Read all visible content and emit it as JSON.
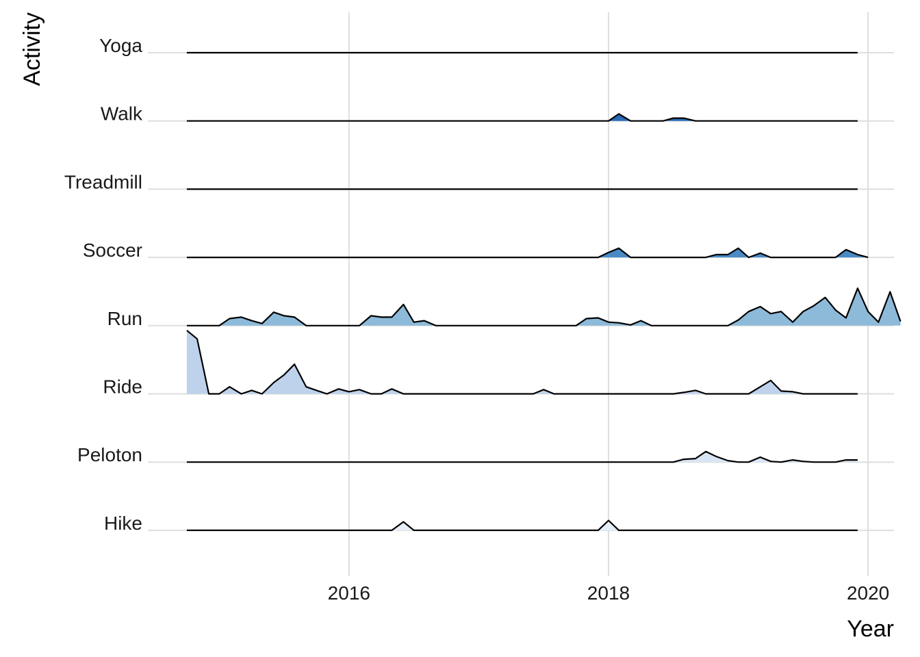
{
  "chart_data": {
    "type": "ridgeline",
    "xlabel": "Year",
    "ylabel": "Activity",
    "x_ticks": [
      2016,
      2018,
      2020
    ],
    "xlim": [
      2014.45,
      2020.2
    ],
    "grid": true,
    "legend": "none",
    "colors": {
      "Walk": "#2b6cb5",
      "Soccer": "#4a8bc5",
      "Run": "#8dbad9",
      "Ride": "#bed2ec",
      "Peloton": "#d8e5f4",
      "Hike": "#e6eef8",
      "Treadmill": "#eeeeee",
      "Yoga": "#eeeeee",
      "line": "#000000",
      "grid": "#dedede"
    },
    "series": [
      {
        "name": "Hike",
        "points": [
          [
            2014.75,
            0
          ],
          [
            2016.33,
            0
          ],
          [
            2016.42,
            0.12
          ],
          [
            2016.5,
            0
          ],
          [
            2017.92,
            0
          ],
          [
            2018.0,
            0.14
          ],
          [
            2018.08,
            0
          ],
          [
            2019.92,
            0
          ]
        ]
      },
      {
        "name": "Peloton",
        "points": [
          [
            2014.75,
            0
          ],
          [
            2018.5,
            0
          ],
          [
            2018.58,
            0.04
          ],
          [
            2018.67,
            0.05
          ],
          [
            2018.75,
            0.15
          ],
          [
            2018.83,
            0.08
          ],
          [
            2018.92,
            0.02
          ],
          [
            2019.0,
            0
          ],
          [
            2019.08,
            0
          ],
          [
            2019.17,
            0.07
          ],
          [
            2019.25,
            0.01
          ],
          [
            2019.33,
            0
          ],
          [
            2019.42,
            0.03
          ],
          [
            2019.5,
            0.01
          ],
          [
            2019.58,
            0
          ],
          [
            2019.67,
            0
          ],
          [
            2019.75,
            0
          ],
          [
            2019.83,
            0.03
          ],
          [
            2019.92,
            0.03
          ]
        ]
      },
      {
        "name": "Ride",
        "points": [
          [
            2014.75,
            0.9
          ],
          [
            2014.83,
            0.78
          ],
          [
            2014.92,
            0
          ],
          [
            2015.0,
            0
          ],
          [
            2015.08,
            0.1
          ],
          [
            2015.17,
            0
          ],
          [
            2015.25,
            0.05
          ],
          [
            2015.33,
            0
          ],
          [
            2015.42,
            0.16
          ],
          [
            2015.5,
            0.27
          ],
          [
            2015.58,
            0.42
          ],
          [
            2015.67,
            0.1
          ],
          [
            2015.75,
            0.05
          ],
          [
            2015.83,
            0
          ],
          [
            2015.92,
            0.07
          ],
          [
            2016.0,
            0.03
          ],
          [
            2016.08,
            0.06
          ],
          [
            2016.17,
            0
          ],
          [
            2016.25,
            0
          ],
          [
            2016.33,
            0.07
          ],
          [
            2016.42,
            0
          ],
          [
            2017.42,
            0
          ],
          [
            2017.5,
            0.06
          ],
          [
            2017.58,
            0
          ],
          [
            2018.42,
            0
          ],
          [
            2018.5,
            0
          ],
          [
            2018.58,
            0.02
          ],
          [
            2018.67,
            0.05
          ],
          [
            2018.75,
            0
          ],
          [
            2019.0,
            0
          ],
          [
            2019.08,
            0
          ],
          [
            2019.17,
            0.1
          ],
          [
            2019.25,
            0.19
          ],
          [
            2019.33,
            0.04
          ],
          [
            2019.42,
            0.03
          ],
          [
            2019.5,
            0
          ],
          [
            2019.92,
            0
          ]
        ]
      },
      {
        "name": "Run",
        "points": [
          [
            2014.75,
            0
          ],
          [
            2015.0,
            0
          ],
          [
            2015.08,
            0.1
          ],
          [
            2015.17,
            0.12
          ],
          [
            2015.25,
            0.07
          ],
          [
            2015.33,
            0.03
          ],
          [
            2015.42,
            0.19
          ],
          [
            2015.5,
            0.14
          ],
          [
            2015.58,
            0.12
          ],
          [
            2015.67,
            0
          ],
          [
            2016.08,
            0
          ],
          [
            2016.17,
            0.14
          ],
          [
            2016.25,
            0.12
          ],
          [
            2016.33,
            0.12
          ],
          [
            2016.42,
            0.3
          ],
          [
            2016.5,
            0.05
          ],
          [
            2016.58,
            0.07
          ],
          [
            2016.67,
            0
          ],
          [
            2017.75,
            0
          ],
          [
            2017.83,
            0.1
          ],
          [
            2017.92,
            0.11
          ],
          [
            2018.0,
            0.05
          ],
          [
            2018.08,
            0.04
          ],
          [
            2018.17,
            0.01
          ],
          [
            2018.25,
            0.07
          ],
          [
            2018.33,
            0
          ],
          [
            2018.92,
            0
          ],
          [
            2019.0,
            0.08
          ],
          [
            2019.08,
            0.2
          ],
          [
            2019.17,
            0.27
          ],
          [
            2019.25,
            0.17
          ],
          [
            2019.33,
            0.2
          ],
          [
            2019.42,
            0.05
          ],
          [
            2019.5,
            0.2
          ],
          [
            2019.58,
            0.28
          ],
          [
            2019.67,
            0.4
          ],
          [
            2019.75,
            0.22
          ],
          [
            2019.83,
            0.11
          ],
          [
            2019.92,
            0.53
          ],
          [
            2020.0,
            0.2
          ],
          [
            2020.08,
            0.05
          ],
          [
            2020.17,
            0.48
          ],
          [
            2020.25,
            0.06
          ]
        ]
      },
      {
        "name": "Soccer",
        "points": [
          [
            2014.75,
            0
          ],
          [
            2017.92,
            0
          ],
          [
            2018.0,
            0.07
          ],
          [
            2018.08,
            0.13
          ],
          [
            2018.17,
            0
          ],
          [
            2018.67,
            0
          ],
          [
            2018.75,
            0
          ],
          [
            2018.83,
            0.04
          ],
          [
            2018.92,
            0.04
          ],
          [
            2019.0,
            0.13
          ],
          [
            2019.08,
            0
          ],
          [
            2019.17,
            0.06
          ],
          [
            2019.25,
            0
          ],
          [
            2019.75,
            0
          ],
          [
            2019.83,
            0.11
          ],
          [
            2019.92,
            0.04
          ],
          [
            2020.0,
            0
          ]
        ]
      },
      {
        "name": "Treadmill",
        "points": [
          [
            2014.75,
            0
          ],
          [
            2019.92,
            0
          ]
        ]
      },
      {
        "name": "Walk",
        "points": [
          [
            2014.75,
            0
          ],
          [
            2018.0,
            0
          ],
          [
            2018.08,
            0.1
          ],
          [
            2018.17,
            0
          ],
          [
            2018.42,
            0
          ],
          [
            2018.5,
            0.04
          ],
          [
            2018.58,
            0.04
          ],
          [
            2018.67,
            0
          ],
          [
            2019.92,
            0
          ]
        ]
      },
      {
        "name": "Yoga",
        "points": [
          [
            2014.75,
            0
          ],
          [
            2019.92,
            0
          ]
        ]
      }
    ]
  }
}
